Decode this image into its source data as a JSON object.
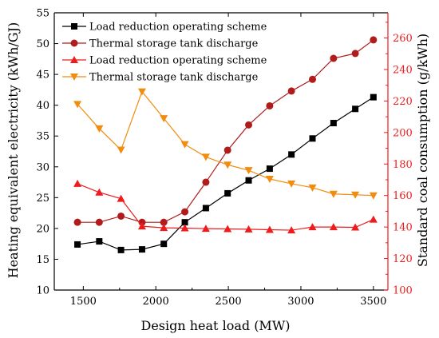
{
  "chart_data": {
    "type": "line",
    "title": "",
    "xlabel": "Design heat load (MW)",
    "ylabel_left": "Heating equivalent electricity (kWh/GJ)",
    "ylabel_right": "Standard coal consumption (g/kWh)",
    "xlim": [
      1300,
      3600
    ],
    "ylim_left": [
      10,
      55
    ],
    "ylim_right": [
      100,
      276
    ],
    "x_ticks": [
      1500,
      2000,
      2500,
      3000,
      3500
    ],
    "y_left_ticks": [
      10,
      15,
      20,
      25,
      30,
      35,
      40,
      45,
      50,
      55
    ],
    "y_right_ticks": [
      100,
      120,
      140,
      160,
      180,
      200,
      220,
      240,
      260
    ],
    "x": [
      1460,
      1610,
      1760,
      1905,
      2055,
      2200,
      2345,
      2495,
      2640,
      2785,
      2935,
      3080,
      3225,
      3375,
      3500
    ],
    "series": [
      {
        "name": "Load reduction operating scheme",
        "axis": "left",
        "marker": "square",
        "color": "#000000",
        "values": [
          17.4,
          17.9,
          16.5,
          16.6,
          17.5,
          21.0,
          23.3,
          25.7,
          27.8,
          29.7,
          32.0,
          34.6,
          37.1,
          39.4,
          41.3
        ]
      },
      {
        "name": "Thermal storage tank discharge",
        "axis": "left",
        "marker": "circle",
        "color": "#b01c1c",
        "values": [
          21.0,
          21.0,
          22.0,
          21.0,
          21.0,
          22.7,
          27.5,
          32.7,
          36.8,
          39.9,
          42.3,
          44.2,
          47.6,
          48.4,
          50.6
        ]
      },
      {
        "name": "Load reduction operating scheme",
        "axis": "right",
        "marker": "triangle-up",
        "color": "#ee1c1c",
        "values": [
          167.5,
          162,
          158,
          140.5,
          139.5,
          139.3,
          139,
          138.8,
          138.6,
          138.3,
          138,
          140,
          140,
          139.8,
          144.8
        ]
      },
      {
        "name": "Thermal storage tank discharge",
        "axis": "right",
        "marker": "triangle-down",
        "color": "#f28c0f",
        "values": [
          218,
          202.5,
          189,
          226,
          209,
          192.5,
          184.5,
          179.5,
          176,
          170.5,
          167.5,
          165,
          161,
          160.5,
          160
        ]
      }
    ],
    "legend_position": "top-left",
    "grid": false
  }
}
